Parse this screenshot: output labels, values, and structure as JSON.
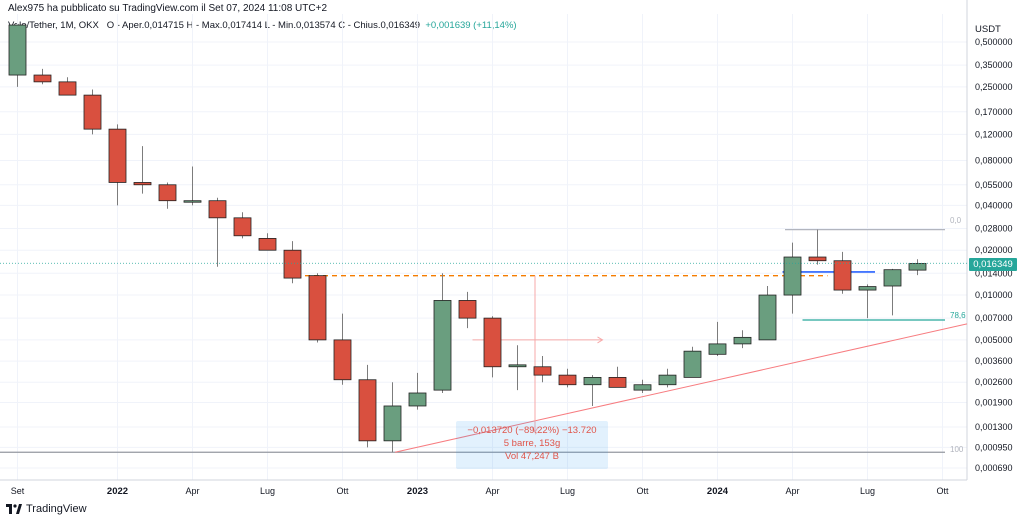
{
  "header": {
    "published": "Alex975 ha pubblicato su TradingView.com il Set 07, 2024 11:08 UTC+2"
  },
  "info": {
    "symbol": "Velo/Tether, 1M, OKX",
    "ohlc": "O - Aper.0,014715  H - Max.0,017414  L - Min.0,013574  C - Chius.0,016349",
    "change": "+0,001639 (+11,14%)"
  },
  "price_axis_unit": "USDT",
  "last_price": "0,016349",
  "measure": {
    "line1": "−0,013720 (−89,22%) −13.720",
    "line2": "5 barre, 153g",
    "line3": "Vol 47,247 B"
  },
  "fib_labels": [
    "0,0",
    "78,6",
    "100"
  ],
  "footer": {
    "brand": "TradingView"
  },
  "colors": {
    "up": "#26a69a",
    "down": "#ef5350",
    "up_body": "#6a9e7f",
    "down_body": "#d9503f"
  },
  "chart_data": {
    "type": "candlestick",
    "scale": "log",
    "ylim": [
      0.00058,
      0.6
    ],
    "y_ticks": [
      "0,500000",
      "0,350000",
      "0,250000",
      "0,170000",
      "0,120000",
      "0,080000",
      "0,055000",
      "0,040000",
      "0,028000",
      "0,020000",
      "0,014000",
      "0,010000",
      "0,007000",
      "0,005000",
      "0,003600",
      "0,002600",
      "0,001900",
      "0,001300",
      "0,000950",
      "0,000690"
    ],
    "x_ticks": [
      {
        "label": "Set",
        "index": 0,
        "bold": false
      },
      {
        "label": "2022",
        "index": 4,
        "bold": true
      },
      {
        "label": "Apr",
        "index": 7,
        "bold": false
      },
      {
        "label": "Lug",
        "index": 10,
        "bold": false
      },
      {
        "label": "Ott",
        "index": 13,
        "bold": false
      },
      {
        "label": "2023",
        "index": 16,
        "bold": true
      },
      {
        "label": "Apr",
        "index": 19,
        "bold": false
      },
      {
        "label": "Lug",
        "index": 22,
        "bold": false
      },
      {
        "label": "Ott",
        "index": 25,
        "bold": false
      },
      {
        "label": "2024",
        "index": 28,
        "bold": true
      },
      {
        "label": "Apr",
        "index": 31,
        "bold": false
      },
      {
        "label": "Lug",
        "index": 34,
        "bold": false
      },
      {
        "label": "Ott",
        "index": 37,
        "bold": false
      }
    ],
    "candles": [
      {
        "o": 0.3,
        "h": 0.65,
        "l": 0.25,
        "c": 0.65
      },
      {
        "o": 0.3,
        "h": 0.33,
        "l": 0.26,
        "c": 0.27
      },
      {
        "o": 0.27,
        "h": 0.29,
        "l": 0.22,
        "c": 0.22
      },
      {
        "o": 0.22,
        "h": 0.24,
        "l": 0.12,
        "c": 0.13
      },
      {
        "o": 0.13,
        "h": 0.14,
        "l": 0.04,
        "c": 0.057
      },
      {
        "o": 0.057,
        "h": 0.1,
        "l": 0.048,
        "c": 0.055
      },
      {
        "o": 0.055,
        "h": 0.057,
        "l": 0.038,
        "c": 0.043
      },
      {
        "o": 0.042,
        "h": 0.073,
        "l": 0.04,
        "c": 0.043
      },
      {
        "o": 0.043,
        "h": 0.045,
        "l": 0.0155,
        "c": 0.033
      },
      {
        "o": 0.033,
        "h": 0.036,
        "l": 0.024,
        "c": 0.025
      },
      {
        "o": 0.024,
        "h": 0.026,
        "l": 0.02,
        "c": 0.02
      },
      {
        "o": 0.02,
        "h": 0.023,
        "l": 0.012,
        "c": 0.013
      },
      {
        "o": 0.0135,
        "h": 0.014,
        "l": 0.0048,
        "c": 0.005
      },
      {
        "o": 0.005,
        "h": 0.0075,
        "l": 0.0025,
        "c": 0.0027
      },
      {
        "o": 0.0027,
        "h": 0.0034,
        "l": 0.00095,
        "c": 0.00105
      },
      {
        "o": 0.00105,
        "h": 0.0026,
        "l": 0.00088,
        "c": 0.0018
      },
      {
        "o": 0.0018,
        "h": 0.003,
        "l": 0.0017,
        "c": 0.0022
      },
      {
        "o": 0.0023,
        "h": 0.014,
        "l": 0.0022,
        "c": 0.0092
      },
      {
        "o": 0.0092,
        "h": 0.0105,
        "l": 0.006,
        "c": 0.007
      },
      {
        "o": 0.007,
        "h": 0.0072,
        "l": 0.0028,
        "c": 0.0033
      },
      {
        "o": 0.0033,
        "h": 0.0046,
        "l": 0.0023,
        "c": 0.0034
      },
      {
        "o": 0.0033,
        "h": 0.0039,
        "l": 0.0026,
        "c": 0.0029
      },
      {
        "o": 0.0029,
        "h": 0.0032,
        "l": 0.0024,
        "c": 0.0025
      },
      {
        "o": 0.0025,
        "h": 0.0029,
        "l": 0.0018,
        "c": 0.0028
      },
      {
        "o": 0.0028,
        "h": 0.0033,
        "l": 0.0024,
        "c": 0.0024
      },
      {
        "o": 0.0023,
        "h": 0.0027,
        "l": 0.0022,
        "c": 0.0025
      },
      {
        "o": 0.0025,
        "h": 0.0032,
        "l": 0.0024,
        "c": 0.0029
      },
      {
        "o": 0.0028,
        "h": 0.0045,
        "l": 0.0028,
        "c": 0.0042
      },
      {
        "o": 0.004,
        "h": 0.0066,
        "l": 0.0039,
        "c": 0.0047
      },
      {
        "o": 0.0047,
        "h": 0.0058,
        "l": 0.0044,
        "c": 0.0052
      },
      {
        "o": 0.005,
        "h": 0.0115,
        "l": 0.005,
        "c": 0.01
      },
      {
        "o": 0.01,
        "h": 0.0225,
        "l": 0.0075,
        "c": 0.018
      },
      {
        "o": 0.018,
        "h": 0.0275,
        "l": 0.016,
        "c": 0.017
      },
      {
        "o": 0.017,
        "h": 0.0195,
        "l": 0.0102,
        "c": 0.0108
      },
      {
        "o": 0.0108,
        "h": 0.0118,
        "l": 0.007,
        "c": 0.0114
      },
      {
        "o": 0.0115,
        "h": 0.015,
        "l": 0.0073,
        "c": 0.0148
      },
      {
        "o": 0.0147,
        "h": 0.0174,
        "l": 0.0136,
        "c": 0.0163
      }
    ]
  }
}
